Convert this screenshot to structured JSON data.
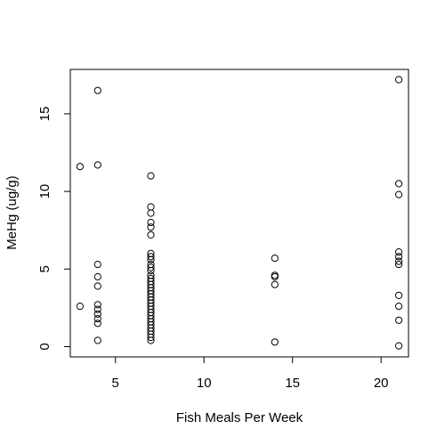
{
  "chart_data": {
    "type": "scatter",
    "title": "",
    "xlabel": "Fish Meals Per Week",
    "ylabel": "MeHg (ug/g)",
    "xlim": [
      2.45,
      21.55
    ],
    "ylim": [
      -0.66,
      17.86
    ],
    "xticks": [
      5,
      10,
      15,
      20
    ],
    "yticks": [
      0,
      5,
      10,
      15
    ],
    "grid": false,
    "legend": "none",
    "series": [
      {
        "marker": "open-circle",
        "color": "#000000",
        "points": [
          [
            3,
            11.6
          ],
          [
            3,
            2.6
          ],
          [
            4,
            16.5
          ],
          [
            4,
            11.7
          ],
          [
            4,
            5.3
          ],
          [
            4,
            4.5
          ],
          [
            4,
            3.9
          ],
          [
            4,
            2.7
          ],
          [
            4,
            2.4
          ],
          [
            4,
            2.1
          ],
          [
            4,
            1.8
          ],
          [
            4,
            1.5
          ],
          [
            4,
            0.4
          ],
          [
            7,
            11.0
          ],
          [
            7,
            9.0
          ],
          [
            7,
            8.6
          ],
          [
            7,
            8.0
          ],
          [
            7,
            7.7
          ],
          [
            7,
            7.2
          ],
          [
            7,
            6.0
          ],
          [
            7,
            5.8
          ],
          [
            7,
            5.6
          ],
          [
            7,
            5.3
          ],
          [
            7,
            5.1
          ],
          [
            7,
            4.9
          ],
          [
            7,
            4.6
          ],
          [
            7,
            4.4
          ],
          [
            7,
            4.2
          ],
          [
            7,
            4.0
          ],
          [
            7,
            3.8
          ],
          [
            7,
            3.6
          ],
          [
            7,
            3.4
          ],
          [
            7,
            3.2
          ],
          [
            7,
            3.0
          ],
          [
            7,
            2.8
          ],
          [
            7,
            2.6
          ],
          [
            7,
            2.4
          ],
          [
            7,
            2.2
          ],
          [
            7,
            2.0
          ],
          [
            7,
            1.8
          ],
          [
            7,
            1.6
          ],
          [
            7,
            1.4
          ],
          [
            7,
            1.2
          ],
          [
            7,
            1.0
          ],
          [
            7,
            0.8
          ],
          [
            7,
            0.6
          ],
          [
            7,
            0.4
          ],
          [
            14,
            5.7
          ],
          [
            14,
            4.6
          ],
          [
            14,
            4.5
          ],
          [
            14,
            4.0
          ],
          [
            14,
            0.3
          ],
          [
            21,
            17.2
          ],
          [
            21,
            10.5
          ],
          [
            21,
            9.8
          ],
          [
            21,
            6.1
          ],
          [
            21,
            5.8
          ],
          [
            21,
            5.5
          ],
          [
            21,
            5.3
          ],
          [
            21,
            3.3
          ],
          [
            21,
            2.6
          ],
          [
            21,
            1.7
          ],
          [
            21,
            0.05
          ]
        ]
      }
    ]
  }
}
